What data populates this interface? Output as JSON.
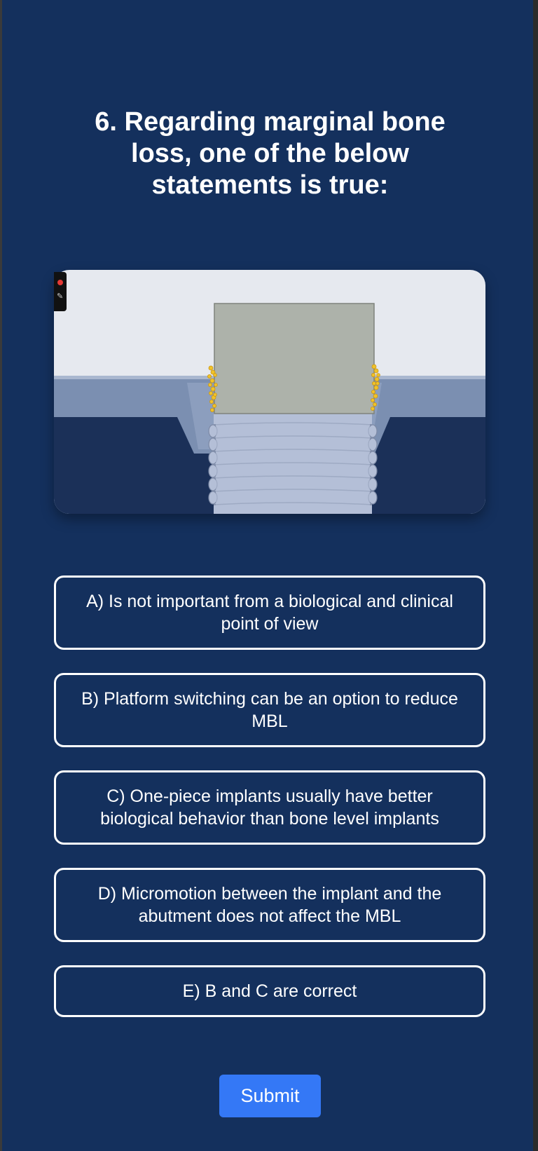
{
  "question": {
    "number": "6.",
    "text": "6. Regarding marginal bone loss, one of the below statements is true:"
  },
  "illustration": {
    "icon": "dental-implant-marginal-bone-loss-illustration",
    "colors": {
      "top_background": "#e6e9ef",
      "gum_band": "#7b8fb1",
      "bone": "#1b3058",
      "implant": "#b4bfd7",
      "abutment": "#adb2aa",
      "bone_particles": "#f0c228"
    }
  },
  "recorder_widget": {
    "record_icon": "record-dot-icon",
    "pen_icon": "pen-icon"
  },
  "options": [
    {
      "id": "A",
      "label": "A) Is not important from a biological and clinical point of view"
    },
    {
      "id": "B",
      "label": "B) Platform switching can be an option to reduce MBL"
    },
    {
      "id": "C",
      "label": "C) One-piece implants usually have better biological behavior than bone level implants"
    },
    {
      "id": "D",
      "label": "D) Micromotion between the implant and the abutment does not affect the MBL"
    },
    {
      "id": "E",
      "label": "E) B and C are correct"
    }
  ],
  "submit": {
    "label": "Submit"
  },
  "theme": {
    "background": "#14305d",
    "submit_color": "#3478f6",
    "text": "#ffffff"
  }
}
